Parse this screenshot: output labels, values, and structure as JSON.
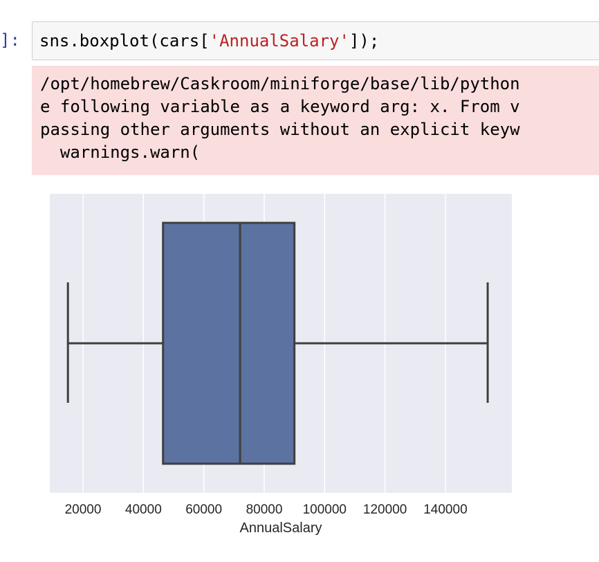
{
  "cell": {
    "prompt": "]:",
    "code_prefix": "sns.boxplot(cars[",
    "code_string": "'AnnualSalary'",
    "code_suffix": "]);"
  },
  "stderr": {
    "lines": [
      "/opt/homebrew/Caskroom/miniforge/base/lib/python",
      "e following variable as a keyword arg: x. From v",
      "passing other arguments without an explicit keyw",
      "  warnings.warn("
    ]
  },
  "colors": {
    "box_fill": "#5c72a0",
    "box_stroke": "#3f3f3f",
    "plot_bg": "#eaeaf2",
    "grid": "#ffffff",
    "stderr_bg": "#fadddd",
    "prompt": "#303f9f",
    "string": "#ba2121"
  },
  "chart_data": {
    "type": "box",
    "title": "",
    "xlabel": "AnnualSalary",
    "ylabel": "",
    "xlim": [
      9000,
      162000
    ],
    "xticks": [
      20000,
      40000,
      60000,
      80000,
      100000,
      120000,
      140000
    ],
    "xtick_labels": [
      "20000",
      "40000",
      "60000",
      "80000",
      "100000",
      "120000",
      "140000"
    ],
    "grid": true,
    "box": {
      "whisker_low": 15000,
      "q1": 46500,
      "median": 72000,
      "q3": 90000,
      "whisker_high": 154000
    }
  }
}
